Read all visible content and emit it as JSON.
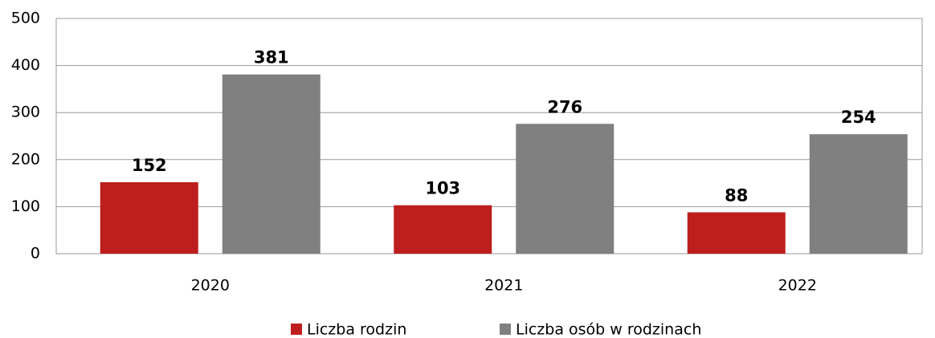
{
  "chart_data": {
    "type": "bar",
    "categories": [
      "2020",
      "2021",
      "2022"
    ],
    "series": [
      {
        "name": "Liczba rodzin",
        "color": "#be1e1e",
        "values": [
          152,
          103,
          88
        ]
      },
      {
        "name": "Liczba osób w rodzinach",
        "color": "#808080",
        "values": [
          381,
          276,
          254
        ]
      }
    ],
    "ylim": [
      0,
      500
    ],
    "yticks": [
      0,
      100,
      200,
      300,
      400,
      500
    ],
    "grid": true,
    "legend": "bottom"
  }
}
